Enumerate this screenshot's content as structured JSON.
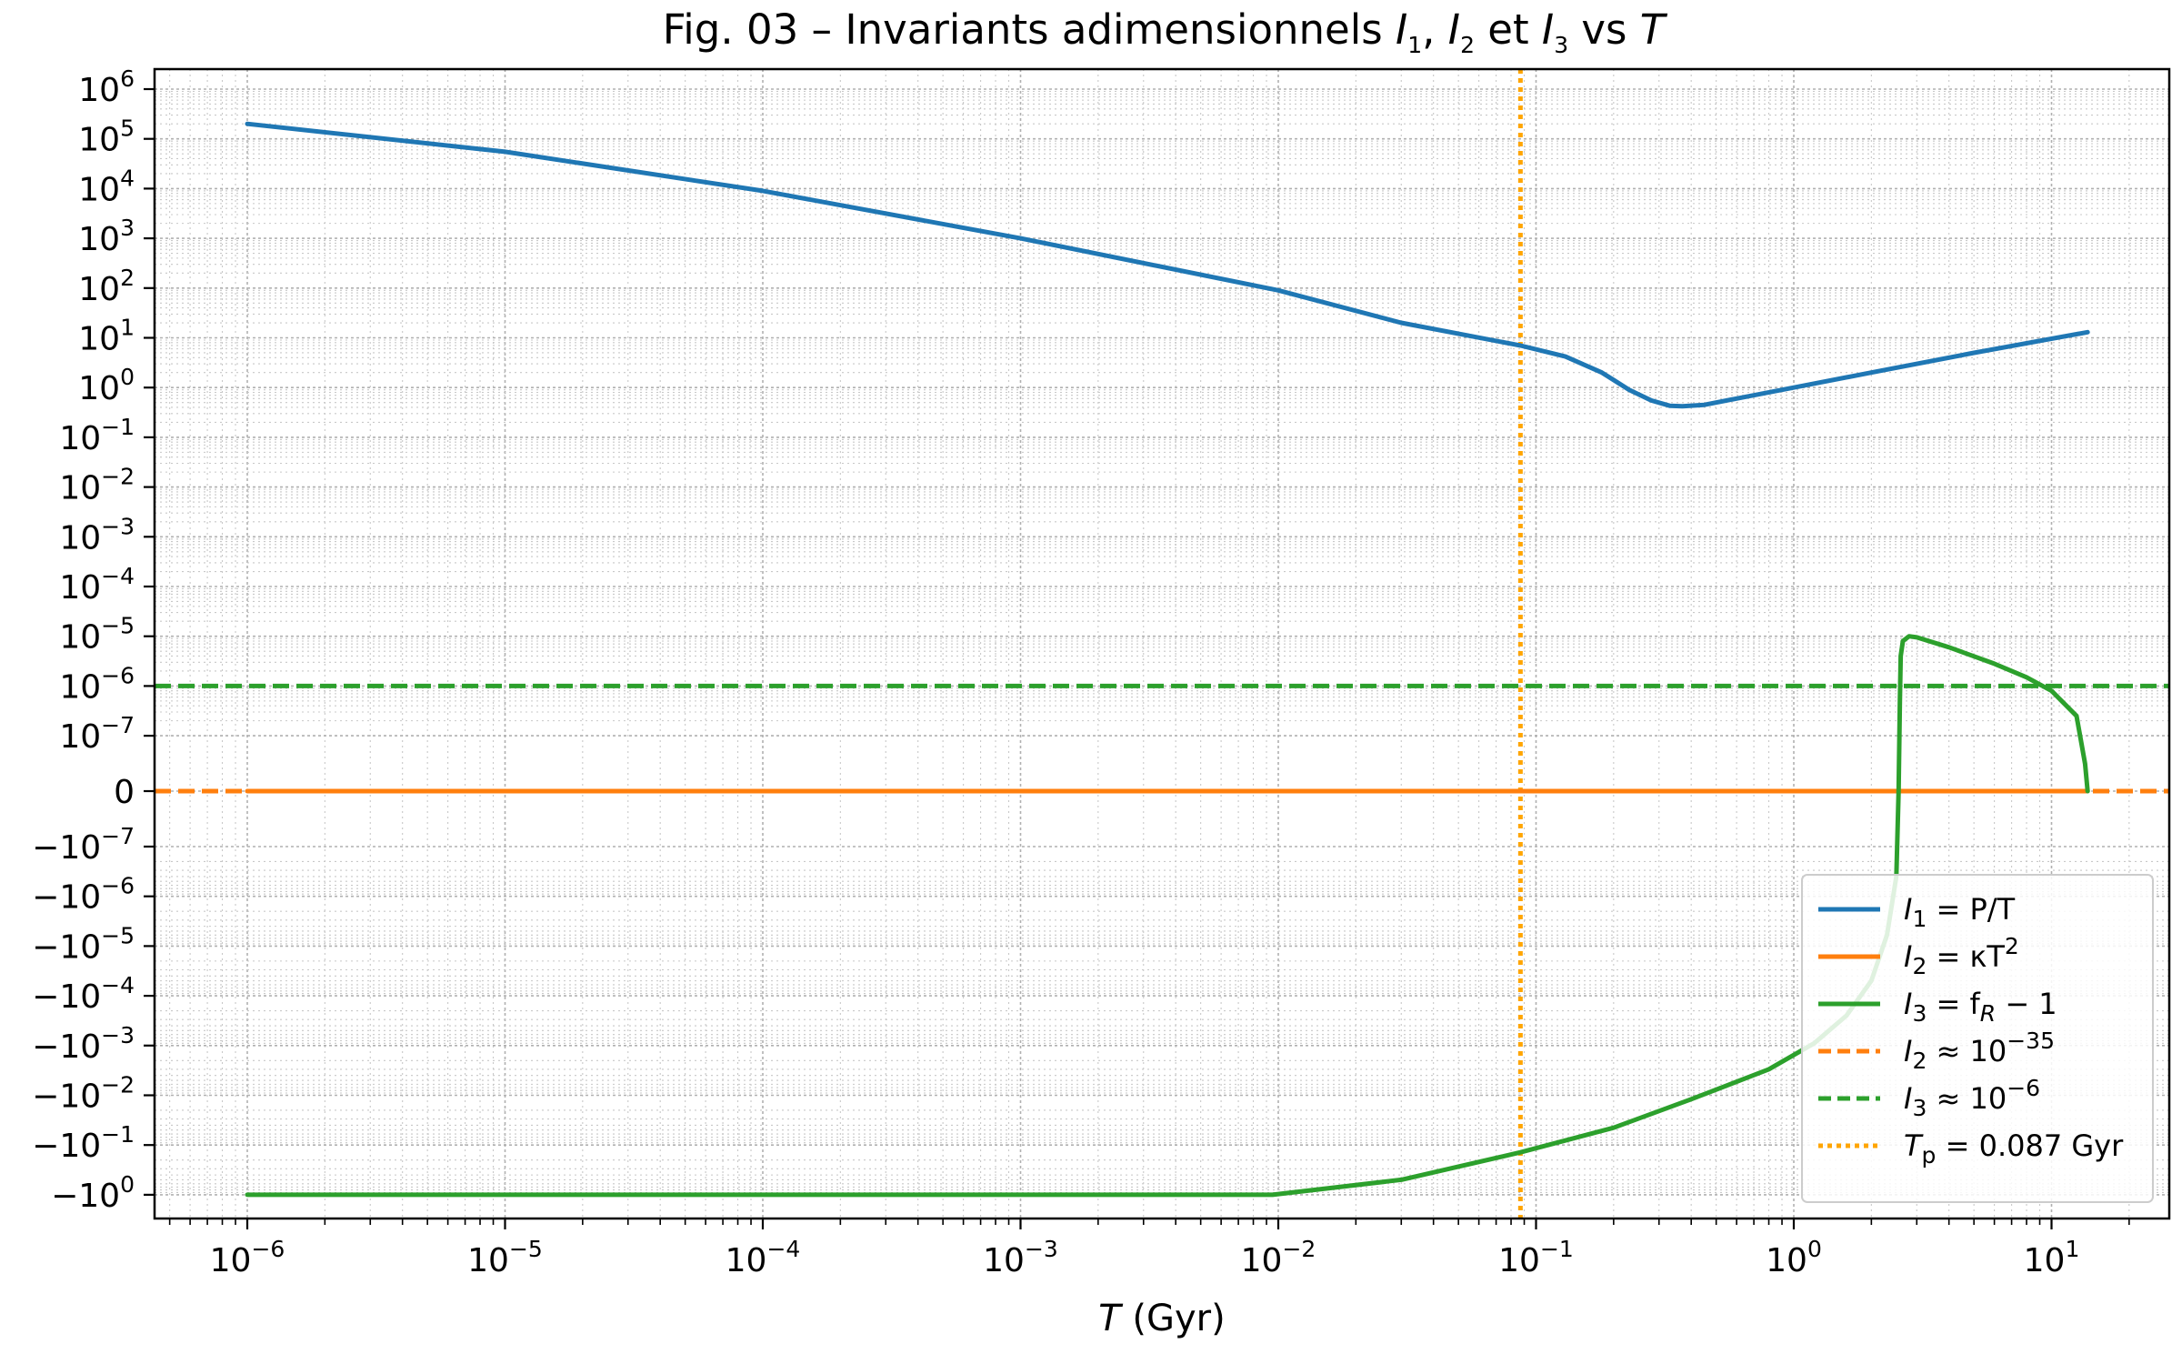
{
  "chart_data": {
    "type": "line",
    "title": "Fig. 03 – Invariants adimensionnels I₁, I₂ et I₃ vs T",
    "title_parts": {
      "lead": "Fig. 03 – Invariants adimensionnels ",
      "i1": "I",
      "i1_sub": "1",
      "sep1": ", ",
      "i2": "I",
      "i2_sub": "2",
      "and": " et ",
      "i3": "I",
      "i3_sub": "3",
      "vs": " vs ",
      "t": "T"
    },
    "xlabel": "T (Gyr)",
    "xlabel_parts": {
      "var": "T",
      "unit": " (Gyr)"
    },
    "x_scale": "log",
    "y_scale": "symlog",
    "y_linthresh": 1e-07,
    "xlim": [
      5e-07,
      30
    ],
    "ylim": [
      -3,
      3000000.0
    ],
    "grid": true,
    "legend_position": "lower-right",
    "x_ticks": [
      {
        "value": 1e-06,
        "base": "10",
        "exp": "−6"
      },
      {
        "value": 1e-05,
        "base": "10",
        "exp": "−5"
      },
      {
        "value": 0.0001,
        "base": "10",
        "exp": "−4"
      },
      {
        "value": 0.001,
        "base": "10",
        "exp": "−3"
      },
      {
        "value": 0.01,
        "base": "10",
        "exp": "−2"
      },
      {
        "value": 0.1,
        "base": "10",
        "exp": "−1"
      },
      {
        "value": 1,
        "base": "10",
        "exp": "0"
      },
      {
        "value": 10,
        "base": "10",
        "exp": "1"
      }
    ],
    "y_ticks": [
      {
        "value": 1000000.0,
        "base": "10",
        "exp": "6"
      },
      {
        "value": 100000.0,
        "base": "10",
        "exp": "5"
      },
      {
        "value": 10000.0,
        "base": "10",
        "exp": "4"
      },
      {
        "value": 1000.0,
        "base": "10",
        "exp": "3"
      },
      {
        "value": 100.0,
        "base": "10",
        "exp": "2"
      },
      {
        "value": 10.0,
        "base": "10",
        "exp": "1"
      },
      {
        "value": 1,
        "base": "10",
        "exp": "0"
      },
      {
        "value": 0.1,
        "base": "10",
        "exp": "−1"
      },
      {
        "value": 0.01,
        "base": "10",
        "exp": "−2"
      },
      {
        "value": 0.001,
        "base": "10",
        "exp": "−3"
      },
      {
        "value": 0.0001,
        "base": "10",
        "exp": "−4"
      },
      {
        "value": 1e-05,
        "base": "10",
        "exp": "−5"
      },
      {
        "value": 1e-06,
        "base": "10",
        "exp": "−6"
      },
      {
        "value": 1e-07,
        "base": "10",
        "exp": "−7"
      },
      {
        "value": 0,
        "base": "0",
        "exp": ""
      },
      {
        "value": -1e-07,
        "base": "−10",
        "exp": "−7"
      },
      {
        "value": -1e-06,
        "base": "−10",
        "exp": "−6"
      },
      {
        "value": -1e-05,
        "base": "−10",
        "exp": "−5"
      },
      {
        "value": -0.0001,
        "base": "−10",
        "exp": "−4"
      },
      {
        "value": -0.001,
        "base": "−10",
        "exp": "−3"
      },
      {
        "value": -0.01,
        "base": "−10",
        "exp": "−2"
      },
      {
        "value": -0.1,
        "base": "−10",
        "exp": "−1"
      },
      {
        "value": -1,
        "base": "−10",
        "exp": "0"
      }
    ],
    "series": [
      {
        "key": "I1",
        "color": "#1f77b4",
        "style": "solid",
        "legend": {
          "var": "I",
          "sub": "1",
          "rest": " = P/T",
          "sup": ""
        },
        "x": [
          1e-06,
          1e-05,
          0.0001,
          0.001,
          0.01,
          0.03,
          0.087,
          0.13,
          0.18,
          0.23,
          0.28,
          0.33,
          0.37,
          0.45,
          0.6,
          1.0,
          2.0,
          5.0,
          13.8
        ],
        "y": [
          200000,
          55000,
          9000,
          1000,
          90,
          20,
          7,
          4.2,
          2.0,
          0.9,
          0.55,
          0.43,
          0.42,
          0.45,
          0.6,
          1.0,
          2.0,
          5.0,
          13
        ]
      },
      {
        "key": "I2",
        "color": "#ff7f0e",
        "style": "solid",
        "legend": {
          "var": "I",
          "sub": "2",
          "rest": " = κT",
          "sup": "2"
        },
        "x": [
          1e-06,
          13.8
        ],
        "y": [
          0,
          0
        ]
      },
      {
        "key": "I3",
        "color": "#2ca02c",
        "style": "solid",
        "legend": {
          "var": "I",
          "sub": "3",
          "rest": " = f",
          "sup": "",
          "sub2": "R",
          "rest2": " − 1"
        },
        "x": [
          1e-06,
          0.0001,
          0.0095,
          0.03,
          0.087,
          0.2,
          0.4,
          0.8,
          1.2,
          1.6,
          2.0,
          2.3,
          2.5,
          2.55,
          2.58,
          2.6,
          2.65,
          2.8,
          3.0,
          4.0,
          6.0,
          8.0,
          10.0,
          12.5,
          13.5,
          13.8
        ],
        "y": [
          -1,
          -1,
          -1,
          -0.5,
          -0.14,
          -0.045,
          -0.012,
          -0.003,
          -0.0009,
          -0.00025,
          -5e-05,
          -6e-06,
          -4e-07,
          0,
          5e-07,
          4e-06,
          8e-06,
          1e-05,
          9.5e-06,
          6e-06,
          2.8e-06,
          1.5e-06,
          8e-07,
          2.5e-07,
          5e-08,
          0
        ]
      }
    ],
    "reference_lines": [
      {
        "key": "I2_ref",
        "orientation": "horizontal",
        "value": 0,
        "color": "#ff7f0e",
        "style": "dashed",
        "legend": {
          "var": "I",
          "sub": "2",
          "rest": " ≈ 10",
          "sup": "−35"
        }
      },
      {
        "key": "I3_ref",
        "orientation": "horizontal",
        "value": 1e-06,
        "color": "#2ca02c",
        "style": "dashed",
        "legend": {
          "var": "I",
          "sub": "3",
          "rest": " ≈ 10",
          "sup": "−6"
        }
      },
      {
        "key": "Tp",
        "orientation": "vertical",
        "value": 0.087,
        "color": "#ffa500",
        "style": "dotted",
        "legend": {
          "var": "T",
          "sub": "p",
          "rest": " = 0.087 Gyr",
          "sup": ""
        }
      }
    ]
  }
}
